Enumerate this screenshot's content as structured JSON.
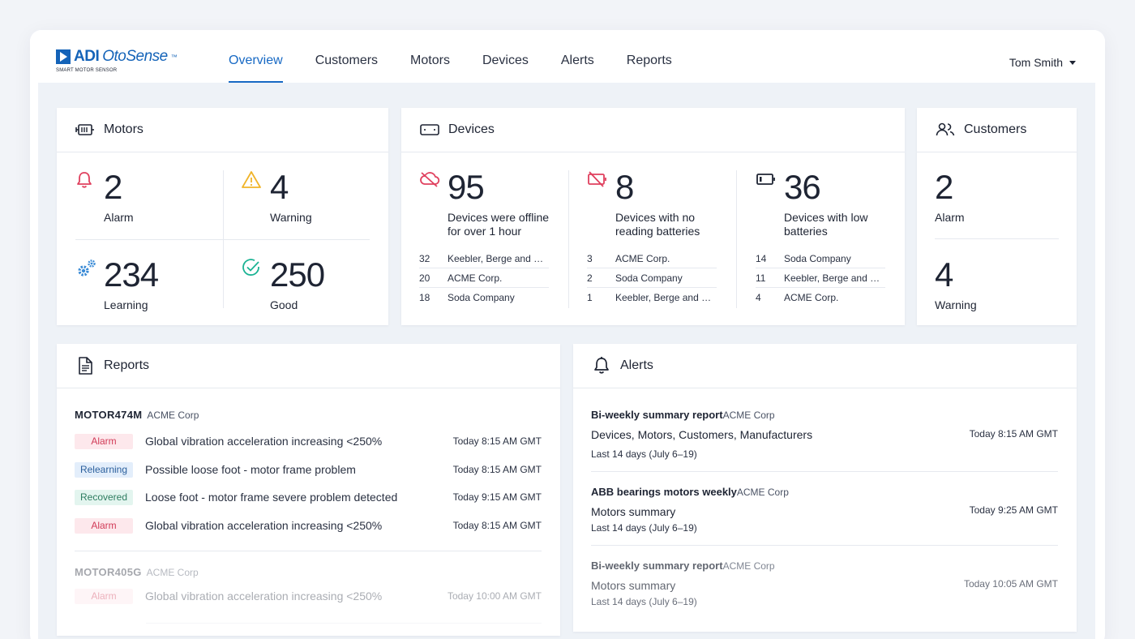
{
  "brand": {
    "name_adi": "ADI",
    "name_oto": "OtoSense",
    "tm": "™",
    "tagline": "SMART MOTOR SENSOR"
  },
  "nav": {
    "items": [
      {
        "label": "Overview",
        "active": true
      },
      {
        "label": "Customers"
      },
      {
        "label": "Motors"
      },
      {
        "label": "Devices"
      },
      {
        "label": "Alerts"
      },
      {
        "label": "Reports"
      }
    ]
  },
  "user": {
    "name": "Tom Smith"
  },
  "motors": {
    "title": "Motors",
    "alarm": {
      "value": "2",
      "label": "Alarm"
    },
    "warning": {
      "value": "4",
      "label": "Warning"
    },
    "learning": {
      "value": "234",
      "label": "Learning"
    },
    "good": {
      "value": "250",
      "label": "Good"
    }
  },
  "devices": {
    "title": "Devices",
    "offline": {
      "value": "95",
      "label": "Devices were offline for over 1 hour",
      "rows": [
        {
          "count": "32",
          "name": "Keebler, Berge and O..."
        },
        {
          "count": "20",
          "name": "ACME Corp."
        },
        {
          "count": "18",
          "name": "Soda Company"
        }
      ]
    },
    "no_battery": {
      "value": "8",
      "label": "Devices with no reading batteries",
      "rows": [
        {
          "count": "3",
          "name": "ACME Corp."
        },
        {
          "count": "2",
          "name": "Soda Company"
        },
        {
          "count": "1",
          "name": "Keebler, Berge and O..."
        }
      ]
    },
    "low_battery": {
      "value": "36",
      "label": "Devices with low batteries",
      "rows": [
        {
          "count": "14",
          "name": "Soda Company"
        },
        {
          "count": "11",
          "name": "Keebler, Berge and O..."
        },
        {
          "count": "4",
          "name": "ACME Corp."
        }
      ]
    }
  },
  "customers": {
    "title": "Customers",
    "alarm": {
      "value": "2",
      "label": "Alarm"
    },
    "warning": {
      "value": "4",
      "label": "Warning"
    }
  },
  "reports": {
    "title": "Reports",
    "groups": [
      {
        "motor": "MOTOR474M",
        "company": "ACME Corp",
        "rows": [
          {
            "status": "Alarm",
            "kind": "alarm",
            "text": "Global vibration acceleration increasing <250%",
            "time": "Today 8:15 AM GMT"
          },
          {
            "status": "Relearning",
            "kind": "relearning",
            "text": "Possible loose foot - motor frame problem",
            "time": "Today 8:15 AM GMT"
          },
          {
            "status": "Recovered",
            "kind": "recovered",
            "text": "Loose foot - motor frame severe problem detected",
            "time": "Today 9:15 AM GMT"
          },
          {
            "status": "Alarm",
            "kind": "alarm",
            "text": "Global vibration acceleration increasing <250%",
            "time": "Today 8:15 AM GMT"
          }
        ]
      },
      {
        "motor": "MOTOR405G",
        "company": "ACME Corp",
        "rows": [
          {
            "status": "Alarm",
            "kind": "alarm",
            "text": "Global vibration acceleration increasing <250%",
            "time": "Today 10:00 AM GMT"
          }
        ]
      }
    ]
  },
  "alerts": {
    "title": "Alerts",
    "items": [
      {
        "title": "Bi-weekly summary report",
        "company": "ACME Corp",
        "subject": "Devices, Motors, Customers, Manufacturers",
        "range": "Last 14 days (July 6–19)",
        "time": "Today 8:15 AM GMT"
      },
      {
        "title": "ABB bearings motors weekly",
        "company": "ACME Corp",
        "subject": "Motors summary",
        "range": "Last 14 days (July 6–19)",
        "time": "Today 9:25 AM GMT"
      },
      {
        "title": "Bi-weekly summary report",
        "company": "ACME Corp",
        "subject": "Motors summary",
        "range": "Last 14 days (July 6–19)",
        "time": "Today 10:05 AM GMT"
      }
    ]
  },
  "colors": {
    "accent": "#1769c4",
    "alarm": "#e0405e",
    "warning": "#f0b429",
    "learning": "#3a8bd6",
    "good": "#1bb394"
  }
}
